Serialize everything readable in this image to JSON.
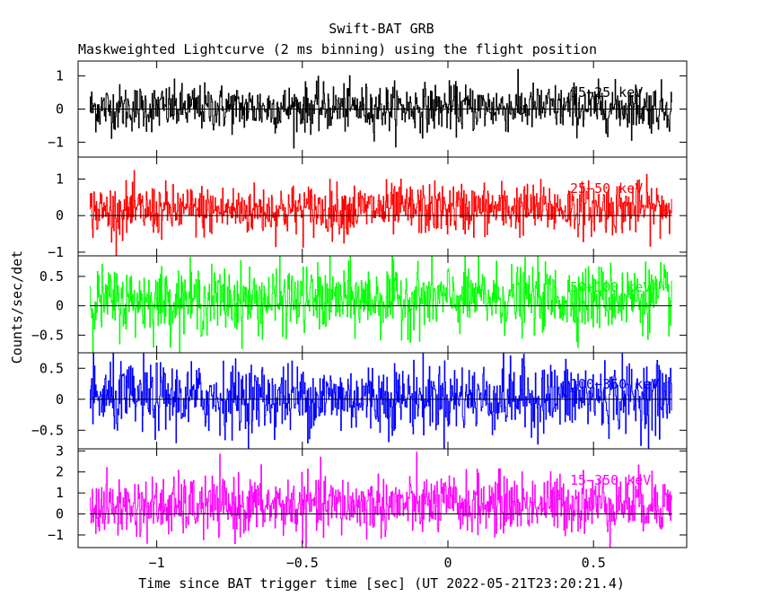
{
  "chart_data": {
    "type": "line",
    "title": "Swift-BAT GRB",
    "subtitle": "Maskweighted Lightcurve (2 ms binning) using the flight position",
    "xlabel": "Time since BAT trigger time [sec] (UT 2022-05-21T23:20:21.4)",
    "ylabel": "Counts/sec/det",
    "xlim": [
      -1.27,
      0.82
    ],
    "x_ticks": [
      -1,
      -0.5,
      0,
      0.5
    ],
    "x_tick_labels": [
      "−1",
      "−0.5",
      "0",
      "0.5"
    ],
    "x_range_data": [
      -1.23,
      0.77
    ],
    "bin_width": 0.002,
    "grid": false,
    "panels": [
      {
        "name": "15-25 keV",
        "label": "15−25 keV",
        "color": "#000000",
        "ylim": [
          -1.45,
          1.45
        ],
        "y_ticks": [
          -1,
          0,
          1
        ],
        "y_tick_labels": [
          "−1",
          "0",
          "1"
        ],
        "mean": 0.03,
        "noise": 0.35
      },
      {
        "name": "25-50 keV",
        "label": "25−50 keV",
        "color": "#ff0000",
        "ylim": [
          -1.1,
          1.6
        ],
        "y_ticks": [
          -1,
          0,
          1
        ],
        "y_tick_labels": [
          "−1",
          "0",
          "1"
        ],
        "mean": 0.12,
        "noise": 0.35
      },
      {
        "name": "50-100 keV",
        "label": "50−100 keV",
        "color": "#00ff00",
        "ylim": [
          -0.8,
          0.85
        ],
        "y_ticks": [
          -0.5,
          0,
          0.5
        ],
        "y_tick_labels": [
          "−0.5",
          "0",
          "0.5"
        ],
        "mean": 0.08,
        "noise": 0.28
      },
      {
        "name": "100-350 keV",
        "label": "100−350 keV",
        "color": "#0000ff",
        "ylim": [
          -0.8,
          0.75
        ],
        "y_ticks": [
          -0.5,
          0,
          0.5
        ],
        "y_tick_labels": [
          "−0.5",
          "0",
          "0.5"
        ],
        "mean": 0.02,
        "noise": 0.28
      },
      {
        "name": "15-350 keV",
        "label": "15−350 keV",
        "color": "#ff00ff",
        "ylim": [
          -1.6,
          3.1
        ],
        "y_ticks": [
          -1,
          0,
          1,
          2,
          3
        ],
        "y_tick_labels": [
          "−1",
          "0",
          "1",
          "2",
          "3"
        ],
        "mean": 0.3,
        "noise": 0.7
      }
    ]
  }
}
